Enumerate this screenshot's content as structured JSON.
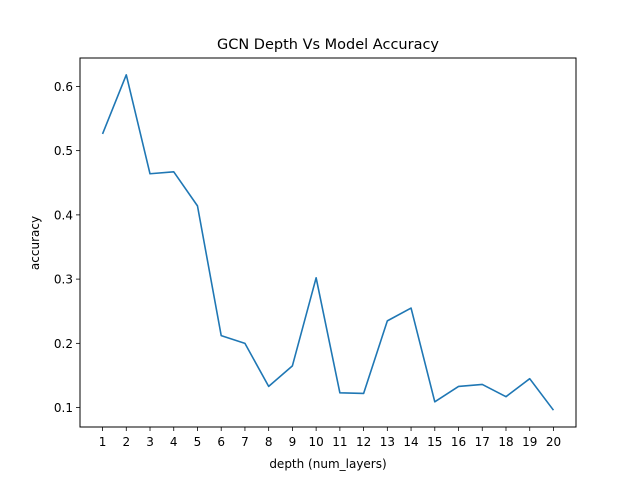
{
  "chart_data": {
    "type": "line",
    "title": "GCN Depth Vs Model Accuracy",
    "xlabel": "depth (num_layers)",
    "ylabel": "accuracy",
    "x": [
      1,
      2,
      3,
      4,
      5,
      6,
      7,
      8,
      9,
      10,
      11,
      12,
      13,
      14,
      15,
      16,
      17,
      18,
      19,
      20
    ],
    "series": [
      {
        "values": [
          0.526,
          0.618,
          0.464,
          0.467,
          0.414,
          0.212,
          0.2,
          0.133,
          0.165,
          0.302,
          0.123,
          0.122,
          0.235,
          0.255,
          0.109,
          0.133,
          0.136,
          0.117,
          0.145,
          0.096
        ],
        "color": "#1f77b4"
      }
    ],
    "xticks": [
      "1",
      "2",
      "3",
      "4",
      "5",
      "6",
      "7",
      "8",
      "9",
      "10",
      "11",
      "12",
      "13",
      "14",
      "15",
      "16",
      "17",
      "18",
      "19",
      "20"
    ],
    "yticks": [
      0.1,
      0.2,
      0.3,
      0.4,
      0.5,
      0.6
    ],
    "ytick_labels": [
      "0.1",
      "0.2",
      "0.3",
      "0.4",
      "0.5",
      "0.6"
    ],
    "xlim": [
      0.05,
      20.95
    ],
    "ylim": [
      0.0698,
      0.6442
    ],
    "grid": false,
    "legend": "none"
  }
}
